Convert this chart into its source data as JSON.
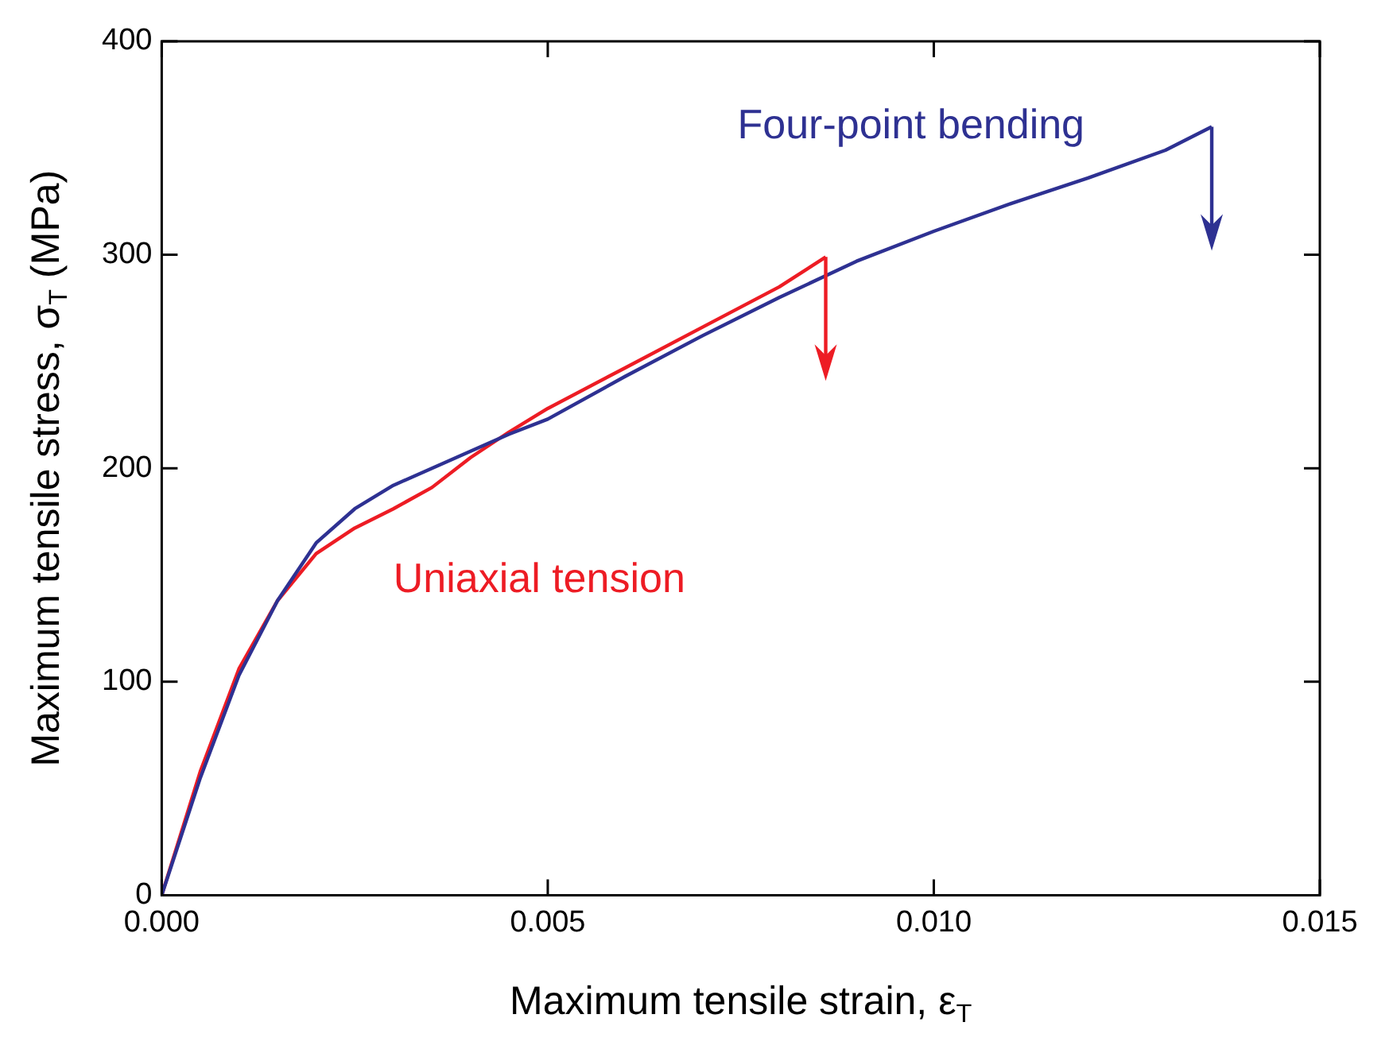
{
  "chart_data": {
    "type": "line",
    "xlabel": "Maximum tensile strain, ε$_{T}$",
    "ylabel": "Maximum tensile stress, σ$_{T}$ (MPa)",
    "xlim": [
      0,
      0.015
    ],
    "xticks": [
      {
        "value": 0,
        "label": "0.000"
      },
      {
        "value": 0.005,
        "label": "0.005"
      },
      {
        "value": 0.01,
        "label": "0.010"
      },
      {
        "value": 0.015,
        "label": "0.015"
      }
    ],
    "ylim": [
      0,
      400
    ],
    "yticks": [
      0,
      100,
      200,
      300,
      400
    ],
    "grid": false,
    "legend": false,
    "marker": "none",
    "line_style": "solid",
    "series": [
      {
        "name": "Four-point bending",
        "color": "#2e3192",
        "x": [
          0,
          0.0005,
          0.001,
          0.0015,
          0.002,
          0.0025,
          0.003,
          0.0035,
          0.004,
          0.0045,
          0.005,
          0.006,
          0.007,
          0.008,
          0.009,
          0.01,
          0.011,
          0.012,
          0.013,
          0.0136
        ],
        "values": [
          0,
          55,
          103,
          138,
          165,
          181,
          192,
          200,
          208,
          216,
          223,
          243,
          262,
          280,
          297,
          311,
          324,
          336,
          349,
          360
        ]
      },
      {
        "name": "Uniaxial tension",
        "color": "#ed1c24",
        "x": [
          0,
          0.0005,
          0.001,
          0.0015,
          0.002,
          0.0025,
          0.003,
          0.0035,
          0.004,
          0.0045,
          0.005,
          0.006,
          0.007,
          0.008,
          0.0086
        ],
        "values": [
          0,
          58,
          106,
          138,
          160,
          172,
          181,
          191,
          205,
          217,
          228,
          247,
          266,
          285,
          299
        ]
      }
    ]
  }
}
